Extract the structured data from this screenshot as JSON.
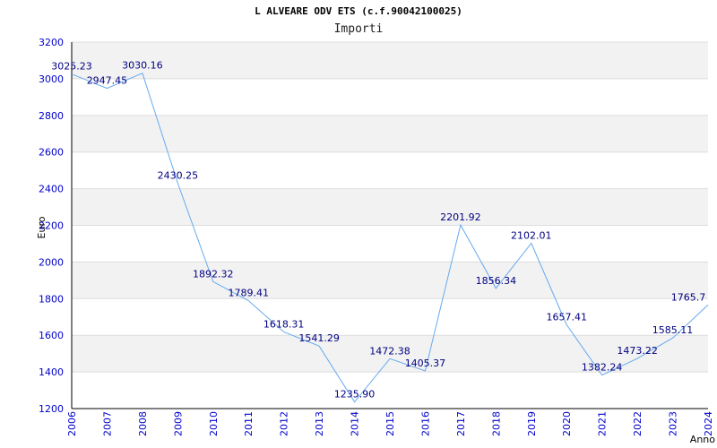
{
  "chart_data": {
    "type": "line",
    "title": "L ALVEARE ODV ETS (c.f.90042100025)",
    "subtitle": "Importi",
    "xlabel": "Anno",
    "ylabel": "Euro",
    "ylim": [
      1200,
      3200
    ],
    "yticks": [
      1200,
      1400,
      1600,
      1800,
      2000,
      2200,
      2400,
      2600,
      2800,
      3000,
      3200
    ],
    "categories": [
      "2006",
      "2007",
      "2008",
      "2009",
      "2010",
      "2011",
      "2012",
      "2013",
      "2014",
      "2015",
      "2016",
      "2017",
      "2018",
      "2019",
      "2020",
      "2021",
      "2022",
      "2023",
      "2024"
    ],
    "values": [
      3025.23,
      2947.45,
      3030.16,
      2430.25,
      1892.32,
      1789.41,
      1618.31,
      1541.29,
      1235.9,
      1472.38,
      1405.37,
      2201.92,
      1856.34,
      2102.01,
      1657.41,
      1382.24,
      1473.22,
      1585.11,
      1765.7
    ],
    "labels": [
      "3025.23",
      "2947.45",
      "3030.16",
      "2430.25",
      "1892.32",
      "1789.41",
      "1618.31",
      "1541.29",
      "1235.90",
      "1472.38",
      "1405.37",
      "2201.92",
      "1856.34",
      "2102.01",
      "1657.41",
      "1382.24",
      "1473.22",
      "1585.11",
      "1765.7"
    ],
    "grid": true,
    "colors": {
      "line": "#66aaee",
      "band": "#f2f2f2",
      "axis_text": "#0000cc",
      "label_text": "#000080"
    }
  }
}
